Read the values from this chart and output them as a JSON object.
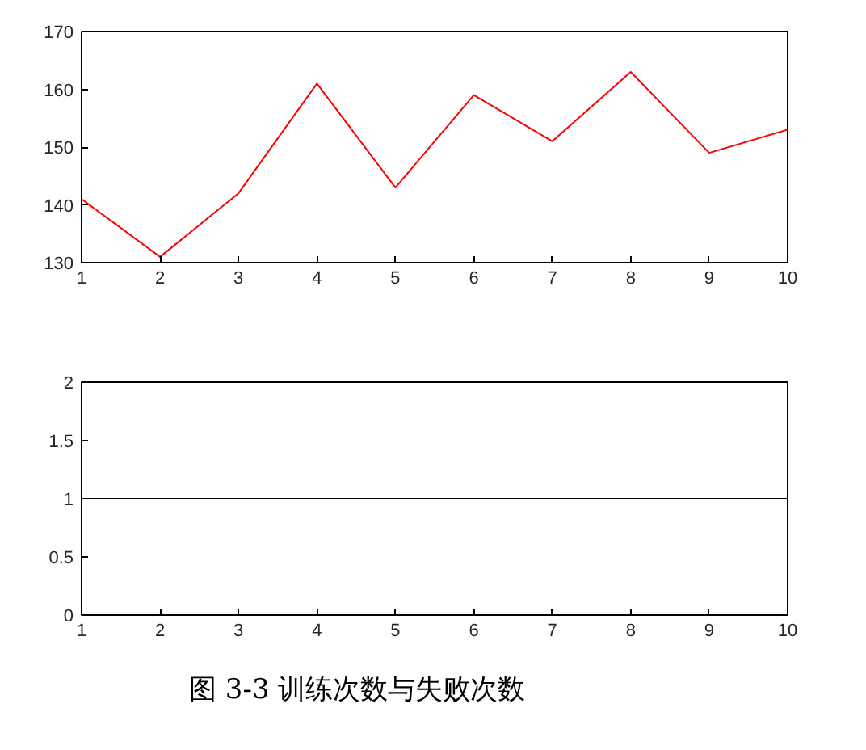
{
  "chart_data": [
    {
      "type": "line",
      "x": [
        1,
        2,
        3,
        4,
        5,
        6,
        7,
        8,
        9,
        10
      ],
      "xlim": [
        1,
        10
      ],
      "xticks": [
        1,
        2,
        3,
        4,
        5,
        6,
        7,
        8,
        9,
        10
      ],
      "ylim": [
        130,
        170
      ],
      "yticks": [
        130,
        140,
        150,
        160,
        170
      ],
      "series": [
        {
          "color": "#ff0000",
          "values": [
            141,
            131,
            142,
            161,
            143,
            159,
            151,
            163,
            149,
            153
          ]
        }
      ],
      "grid": false
    },
    {
      "type": "line",
      "x": [
        1,
        2,
        3,
        4,
        5,
        6,
        7,
        8,
        9,
        10
      ],
      "xlim": [
        1,
        10
      ],
      "xticks": [
        1,
        2,
        3,
        4,
        5,
        6,
        7,
        8,
        9,
        10
      ],
      "ylim": [
        0,
        2
      ],
      "yticks": [
        0,
        0.5,
        1,
        1.5,
        2
      ],
      "series": [
        {
          "color": "#000000",
          "values": [
            1,
            1,
            1,
            1,
            1,
            1,
            1,
            1,
            1,
            1
          ]
        }
      ],
      "grid": false,
      "annotations": [
        "图 3-3 训练次数与失败次数"
      ]
    }
  ]
}
